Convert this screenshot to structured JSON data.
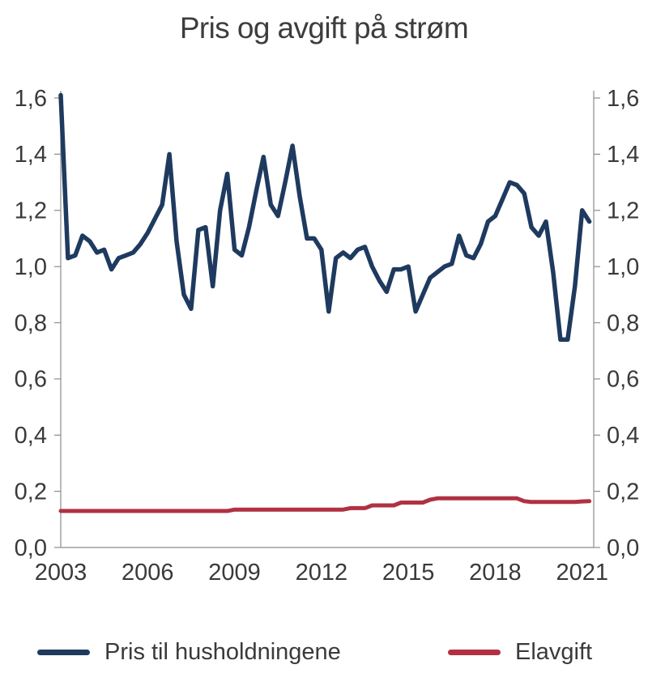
{
  "title": "Pris og avgift på strøm",
  "legend": {
    "items": [
      {
        "label": "Pris til husholdningene",
        "color": "#1F3A5F"
      },
      {
        "label": "Elavgift",
        "color": "#B03142"
      }
    ]
  },
  "colors": {
    "series_pris": "#1F3A5F",
    "series_elavgift": "#B03142",
    "axis": "#8C8C8C",
    "text": "#3A3A3A",
    "background": "#FFFFFF"
  },
  "chart_data": {
    "type": "line",
    "title": "Pris og avgift på strøm",
    "xlabel": "",
    "ylabel": "",
    "x_unit": "year (quarterly points)",
    "xlim": [
      2003.0,
      2021.4
    ],
    "ylim": [
      0.0,
      1.6
    ],
    "grid": false,
    "legend_position": "bottom",
    "decimal_separator": ",",
    "y_axis_sides": [
      "left",
      "right"
    ],
    "yticks": {
      "values": [
        0.0,
        0.2,
        0.4,
        0.6,
        0.8,
        1.0,
        1.2,
        1.4,
        1.6
      ],
      "labels": [
        "0,0",
        "0,2",
        "0,4",
        "0,6",
        "0,8",
        "1,0",
        "1,2",
        "1,4",
        "1,6"
      ]
    },
    "xticks": {
      "values": [
        2003,
        2006,
        2009,
        2012,
        2015,
        2018,
        2021
      ],
      "labels": [
        "2003",
        "2006",
        "2009",
        "2012",
        "2015",
        "2018",
        "2021"
      ]
    },
    "x": [
      2003.0,
      2003.25,
      2003.5,
      2003.75,
      2004.0,
      2004.25,
      2004.5,
      2004.75,
      2005.0,
      2005.25,
      2005.5,
      2005.75,
      2006.0,
      2006.25,
      2006.5,
      2006.75,
      2007.0,
      2007.25,
      2007.5,
      2007.75,
      2008.0,
      2008.25,
      2008.5,
      2008.75,
      2009.0,
      2009.25,
      2009.5,
      2009.75,
      2010.0,
      2010.25,
      2010.5,
      2010.75,
      2011.0,
      2011.25,
      2011.5,
      2011.75,
      2012.0,
      2012.25,
      2012.5,
      2012.75,
      2013.0,
      2013.25,
      2013.5,
      2013.75,
      2014.0,
      2014.25,
      2014.5,
      2014.75,
      2015.0,
      2015.25,
      2015.5,
      2015.75,
      2016.0,
      2016.25,
      2016.5,
      2016.75,
      2017.0,
      2017.25,
      2017.5,
      2017.75,
      2018.0,
      2018.25,
      2018.5,
      2018.75,
      2019.0,
      2019.25,
      2019.5,
      2019.75,
      2020.0,
      2020.25,
      2020.5,
      2020.75,
      2021.0,
      2021.25
    ],
    "series": [
      {
        "name": "Pris til husholdningene",
        "color": "#1F3A5F",
        "stroke_width": 5.5,
        "values": [
          1.61,
          1.03,
          1.04,
          1.11,
          1.09,
          1.05,
          1.06,
          0.99,
          1.03,
          1.04,
          1.05,
          1.08,
          1.12,
          1.17,
          1.22,
          1.4,
          1.09,
          0.9,
          0.85,
          1.13,
          1.14,
          0.93,
          1.2,
          1.33,
          1.06,
          1.04,
          1.14,
          1.27,
          1.39,
          1.22,
          1.18,
          1.3,
          1.43,
          1.25,
          1.1,
          1.1,
          1.06,
          0.84,
          1.03,
          1.05,
          1.03,
          1.06,
          1.07,
          1.0,
          0.95,
          0.91,
          0.99,
          0.99,
          1.0,
          0.84,
          0.9,
          0.96,
          0.98,
          1.0,
          1.01,
          1.11,
          1.04,
          1.03,
          1.08,
          1.16,
          1.18,
          1.24,
          1.3,
          1.29,
          1.26,
          1.14,
          1.11,
          1.16,
          0.98,
          0.74,
          0.74,
          0.93,
          1.2,
          1.16
        ]
      },
      {
        "name": "Elavgift",
        "color": "#B03142",
        "stroke_width": 5,
        "values": [
          0.13,
          0.13,
          0.13,
          0.13,
          0.13,
          0.13,
          0.13,
          0.13,
          0.13,
          0.13,
          0.13,
          0.13,
          0.13,
          0.13,
          0.13,
          0.13,
          0.13,
          0.13,
          0.13,
          0.13,
          0.13,
          0.13,
          0.13,
          0.13,
          0.135,
          0.135,
          0.135,
          0.135,
          0.135,
          0.135,
          0.135,
          0.135,
          0.135,
          0.135,
          0.135,
          0.135,
          0.135,
          0.135,
          0.135,
          0.135,
          0.14,
          0.14,
          0.14,
          0.15,
          0.15,
          0.15,
          0.15,
          0.16,
          0.16,
          0.16,
          0.16,
          0.17,
          0.175,
          0.175,
          0.175,
          0.175,
          0.175,
          0.175,
          0.175,
          0.175,
          0.175,
          0.175,
          0.175,
          0.175,
          0.165,
          0.162,
          0.162,
          0.162,
          0.162,
          0.162,
          0.162,
          0.162,
          0.164,
          0.165
        ]
      }
    ]
  }
}
